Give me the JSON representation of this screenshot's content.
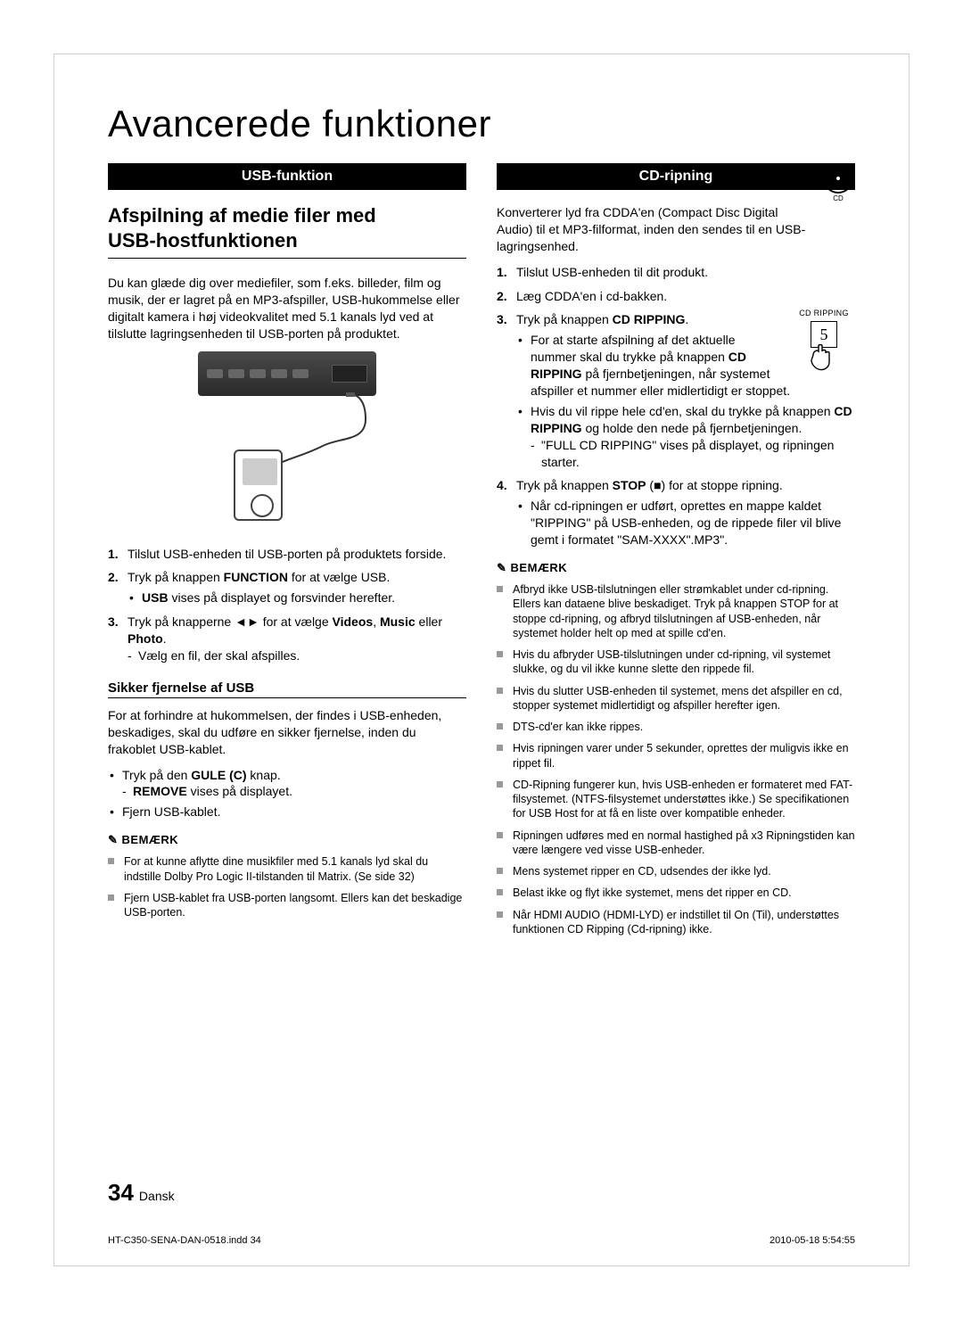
{
  "page": {
    "title": "Avancerede funktioner",
    "number": "34",
    "lang": "Dansk",
    "footer_left": "HT-C350-SENA-DAN-0518.indd   34",
    "footer_right": "2010-05-18    5:54:55"
  },
  "left": {
    "bar": "USB-funktion",
    "h2_line1": "Afspilning af medie filer med",
    "h2_line2": "USB-hostfunktionen",
    "intro": "Du kan glæde dig over mediefiler, som f.eks. billeder, film og musik, der er lagret på en MP3-afspiller, USB-hukommelse eller digitalt kamera i høj videokvalitet med 5.1 kanals lyd ved at tilslutte lagringsenheden til USB-porten på produktet.",
    "ol": [
      "Tilslut USB-enheden til USB-porten på produktets forside.",
      "Tryk på knappen <b>FUNCTION</b> for at vælge USB.",
      "Tryk på knapperne ◄► for at vælge <b>Videos</b>, <b>Music</b> eller <b>Photo</b>."
    ],
    "ol2_sub": "<b>USB</b> vises på displayet og forsvinder herefter.",
    "ol3_sub": "Vælg en fil, der skal afspilles.",
    "h3": "Sikker fjernelse af USB",
    "safe_intro": "For at forhindre at hukommelsen, der findes i USB-enheden, beskadiges, skal du udføre en sikker fjernelse, inden du frakoblet USB-kablet.",
    "safe_bullets": [
      "Tryk på den <b>GULE (C)</b> knap.",
      "Fjern USB-kablet."
    ],
    "safe_sub": "<b>REMOVE</b> vises på displayet.",
    "note_label": "BEMÆRK",
    "notes": [
      "For at kunne aflytte dine musikfiler med 5.1 kanals lyd skal du indstille Dolby Pro Logic II-tilstanden til Matrix. (Se side 32)",
      "Fjern USB-kablet fra USB-porten langsomt. Ellers kan det beskadige USB-porten."
    ]
  },
  "right": {
    "bar": "CD-ripning",
    "cd_label": "CD",
    "intro": "Konverterer lyd fra CDDA'en (Compact Disc Digital Audio) til et MP3-filformat, inden den sendes til en USB-lagringsenhed.",
    "rip_label": "CD RIPPING",
    "rip_digit": "5",
    "ol": [
      "Tilslut USB-enheden til dit produkt.",
      "Læg CDDA'en i cd-bakken.",
      "Tryk på knappen <b>CD RIPPING</b>.",
      "Tryk på knappen <b>STOP</b> (■) for at stoppe ripning."
    ],
    "ol3_bullets": [
      "For at starte afspilning af det aktuelle nummer skal du trykke på knappen <b>CD RIPPING</b> på fjernbetjeningen, når systemet afspiller et nummer eller midlertidigt er stoppet.",
      "Hvis du vil rippe hele cd'en, skal du trykke på knappen <b>CD RIPPING</b> og holde den nede på fjernbetjeningen."
    ],
    "ol3_dash": "\"FULL CD RIPPING\" vises på displayet, og ripningen starter.",
    "ol4_bullet": "Når cd-ripningen er udført, oprettes en mappe kaldet \"RIPPING\" på USB-enheden, og de rippede filer vil blive gemt i formatet \"SAM-XXXX\".MP3\".",
    "note_label": "BEMÆRK",
    "notes": [
      "Afbryd ikke USB-tilslutningen eller strømkablet under cd-ripning. Ellers kan dataene blive beskadiget. Tryk på knappen STOP for at stoppe cd-ripning, og afbryd tilslutningen af USB-enheden, når systemet holder helt op med at spille cd'en.",
      "Hvis du afbryder USB-tilslutningen under cd-ripning, vil systemet slukke, og du vil ikke kunne slette den rippede fil.",
      "Hvis du slutter USB-enheden til systemet, mens det afspiller en cd, stopper systemet midlertidigt og afspiller herefter igen.",
      "DTS-cd'er kan ikke rippes.",
      "Hvis ripningen varer under 5 sekunder, oprettes der muligvis ikke en rippet fil.",
      "CD-Ripning fungerer kun, hvis USB-enheden er formateret med FAT-filsystemet. (NTFS-filsystemet understøttes ikke.) Se specifikationen for USB Host for at få en liste over kompatible enheder.",
      "Ripningen udføres med en normal hastighed på x3 Ripningstiden kan være længere ved visse USB-enheder.",
      "Mens systemet ripper en CD, udsendes der ikke lyd.",
      "Belast ikke og flyt ikke systemet, mens det ripper en CD.",
      "Når HDMI AUDIO (HDMI-LYD) er indstillet til On (Til), understøttes funktionen CD Ripping (Cd-ripning) ikke."
    ]
  }
}
